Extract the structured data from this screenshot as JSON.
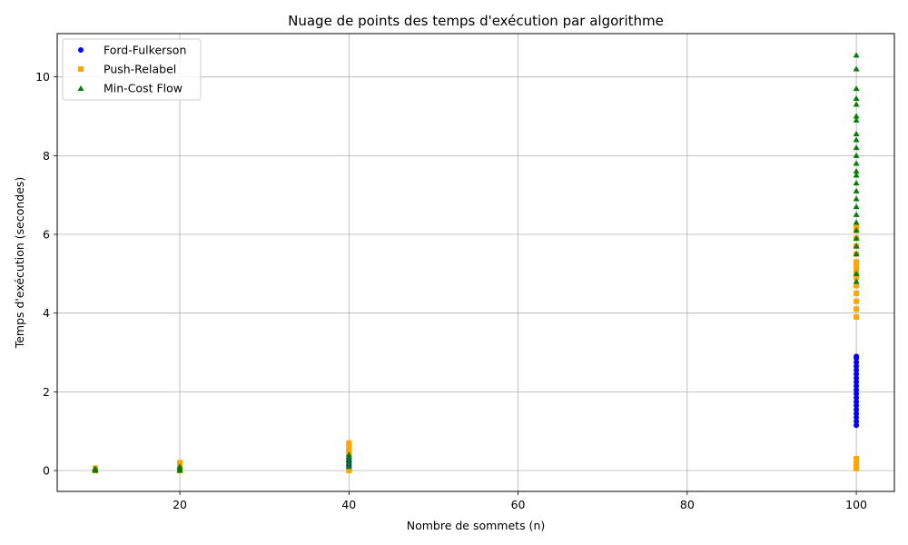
{
  "chart_data": {
    "type": "scatter",
    "title": "Nuage de points des temps d'exécution par algorithme",
    "xlabel": "Nombre de sommets (n)",
    "ylabel": "Temps d'exécution (secondes)",
    "xlim": [
      5.5,
      104.5
    ],
    "ylim": [
      -0.53,
      11.1
    ],
    "xticks": [
      20,
      40,
      60,
      80,
      100
    ],
    "yticks": [
      0,
      2,
      4,
      6,
      8,
      10
    ],
    "grid": true,
    "legend_position": "upper-left",
    "series": [
      {
        "name": "Ford-Fulkerson",
        "marker": "circle",
        "color": "#0000ff",
        "points": [
          [
            10,
            0.0
          ],
          [
            10,
            0.01
          ],
          [
            10,
            0.02
          ],
          [
            20,
            0.0
          ],
          [
            20,
            0.02
          ],
          [
            20,
            0.04
          ],
          [
            40,
            0.05
          ],
          [
            40,
            0.1
          ],
          [
            40,
            0.15
          ],
          [
            40,
            0.2
          ],
          [
            40,
            0.25
          ],
          [
            40,
            0.3
          ],
          [
            100,
            1.15
          ],
          [
            100,
            1.25
          ],
          [
            100,
            1.35
          ],
          [
            100,
            1.45
          ],
          [
            100,
            1.55
          ],
          [
            100,
            1.65
          ],
          [
            100,
            1.75
          ],
          [
            100,
            1.85
          ],
          [
            100,
            1.95
          ],
          [
            100,
            2.05
          ],
          [
            100,
            2.15
          ],
          [
            100,
            2.25
          ],
          [
            100,
            2.35
          ],
          [
            100,
            2.45
          ],
          [
            100,
            2.55
          ],
          [
            100,
            2.65
          ],
          [
            100,
            2.75
          ],
          [
            100,
            2.85
          ],
          [
            100,
            2.9
          ]
        ]
      },
      {
        "name": "Push-Relabel",
        "marker": "square",
        "color": "#ffa500",
        "points": [
          [
            10,
            0.0
          ],
          [
            10,
            0.03
          ],
          [
            10,
            0.06
          ],
          [
            20,
            0.0
          ],
          [
            20,
            0.05
          ],
          [
            20,
            0.1
          ],
          [
            20,
            0.15
          ],
          [
            20,
            0.2
          ],
          [
            40,
            0.0
          ],
          [
            40,
            0.4
          ],
          [
            40,
            0.45
          ],
          [
            40,
            0.5
          ],
          [
            40,
            0.55
          ],
          [
            40,
            0.6
          ],
          [
            40,
            0.65
          ],
          [
            40,
            0.7
          ],
          [
            100,
            0.05
          ],
          [
            100,
            0.1
          ],
          [
            100,
            0.15
          ],
          [
            100,
            0.2
          ],
          [
            100,
            0.3
          ],
          [
            100,
            3.9
          ],
          [
            100,
            4.1
          ],
          [
            100,
            4.3
          ],
          [
            100,
            4.5
          ],
          [
            100,
            4.7
          ],
          [
            100,
            4.9
          ],
          [
            100,
            5.0
          ],
          [
            100,
            5.1
          ],
          [
            100,
            5.2
          ],
          [
            100,
            5.3
          ],
          [
            100,
            5.5
          ],
          [
            100,
            5.7
          ],
          [
            100,
            5.9
          ],
          [
            100,
            6.1
          ],
          [
            100,
            6.2
          ]
        ]
      },
      {
        "name": "Min-Cost Flow",
        "marker": "triangle",
        "color": "#008000",
        "points": [
          [
            10,
            0.0
          ],
          [
            10,
            0.02
          ],
          [
            10,
            0.05
          ],
          [
            20,
            0.0
          ],
          [
            20,
            0.05
          ],
          [
            20,
            0.1
          ],
          [
            40,
            0.1
          ],
          [
            40,
            0.2
          ],
          [
            40,
            0.3
          ],
          [
            40,
            0.4
          ],
          [
            100,
            4.8
          ],
          [
            100,
            5.0
          ],
          [
            100,
            5.5
          ],
          [
            100,
            5.7
          ],
          [
            100,
            5.9
          ],
          [
            100,
            6.1
          ],
          [
            100,
            6.3
          ],
          [
            100,
            6.5
          ],
          [
            100,
            6.7
          ],
          [
            100,
            6.9
          ],
          [
            100,
            7.1
          ],
          [
            100,
            7.3
          ],
          [
            100,
            7.5
          ],
          [
            100,
            7.6
          ],
          [
            100,
            7.8
          ],
          [
            100,
            8.0
          ],
          [
            100,
            8.2
          ],
          [
            100,
            8.4
          ],
          [
            100,
            8.55
          ],
          [
            100,
            8.9
          ],
          [
            100,
            9.0
          ],
          [
            100,
            9.3
          ],
          [
            100,
            9.45
          ],
          [
            100,
            9.7
          ],
          [
            100,
            10.2
          ],
          [
            100,
            10.55
          ]
        ]
      }
    ]
  }
}
